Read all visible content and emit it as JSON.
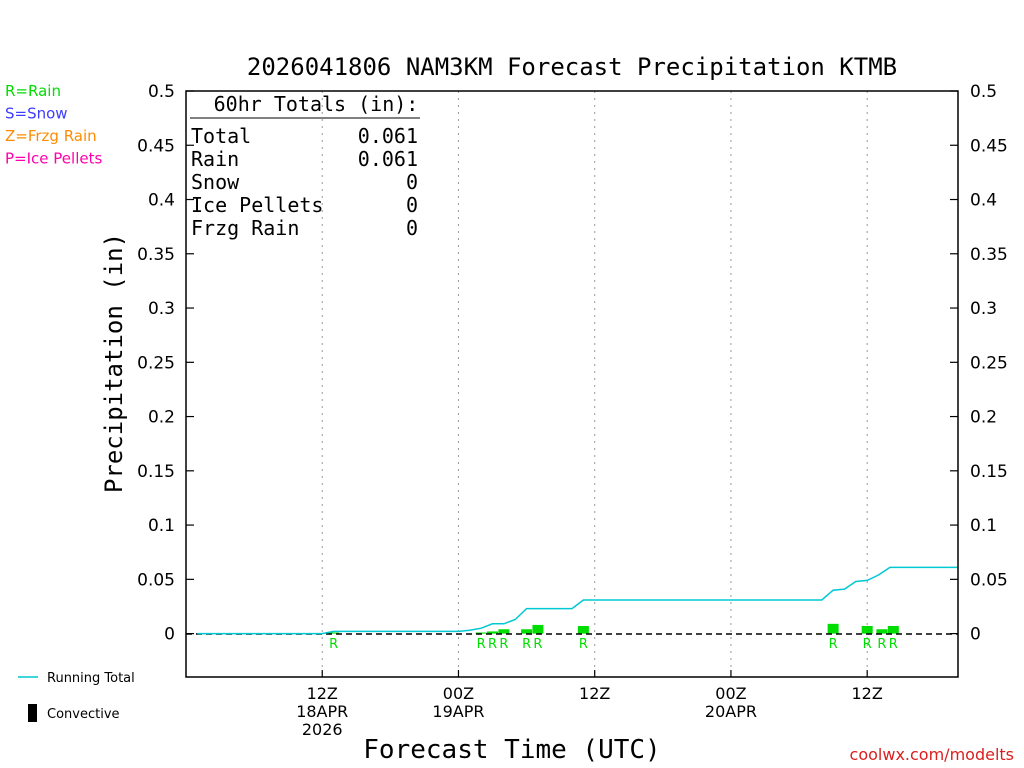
{
  "chart_data": {
    "type": "bar",
    "title": "2026041806 NAM3KM Forecast Precipitation KTMB",
    "xlabel": "Forecast Time (UTC)",
    "ylabel": "Precipitation (in)",
    "ylim": [
      -0.04,
      0.5
    ],
    "xlim_hours": [
      -6,
      62
    ],
    "y_ticks": [
      "0",
      "0.05",
      "0.1",
      "0.15",
      "0.2",
      "0.25",
      "0.3",
      "0.35",
      "0.4",
      "0.45",
      "0.5"
    ],
    "y_tick_values": [
      0,
      0.05,
      0.1,
      0.15,
      0.2,
      0.25,
      0.3,
      0.35,
      0.4,
      0.45,
      0.5
    ],
    "x_ticks": [
      {
        "hour": 6,
        "lines": [
          "12Z",
          "18APR",
          "2026"
        ]
      },
      {
        "hour": 18,
        "lines": [
          "00Z",
          "19APR"
        ]
      },
      {
        "hour": 30,
        "lines": [
          "12Z"
        ]
      },
      {
        "hour": 42,
        "lines": [
          "00Z",
          "20APR"
        ]
      },
      {
        "hour": 54,
        "lines": [
          "12Z"
        ]
      }
    ],
    "legend": [
      {
        "text": "R=Rain",
        "color": "#00dd00"
      },
      {
        "text": "S=Snow",
        "color": "#3c3cff"
      },
      {
        "text": "Z=Frzg Rain",
        "color": "#ff8c00"
      },
      {
        "text": "P=Ice Pellets",
        "color": "#ff00aa"
      }
    ],
    "totals": {
      "header": "60hr Totals (in):",
      "rows": [
        {
          "label": "Total",
          "value": "0.061"
        },
        {
          "label": "Rain",
          "value": "0.061"
        },
        {
          "label": "Snow",
          "value": "0"
        },
        {
          "label": "Ice Pellets",
          "value": "0"
        },
        {
          "label": "Frzg Rain",
          "value": "0"
        }
      ]
    },
    "bars": [
      {
        "hour": 7,
        "value": 0.001,
        "type": "R"
      },
      {
        "hour": 20,
        "value": 0.001,
        "type": "R"
      },
      {
        "hour": 21,
        "value": 0.002,
        "type": "R"
      },
      {
        "hour": 22,
        "value": 0.004,
        "type": "R"
      },
      {
        "hour": 24,
        "value": 0.004,
        "type": "R"
      },
      {
        "hour": 25,
        "value": 0.008,
        "type": "R"
      },
      {
        "hour": 29,
        "value": 0.007,
        "type": "R"
      },
      {
        "hour": 51,
        "value": 0.009,
        "type": "R"
      },
      {
        "hour": 54,
        "value": 0.007,
        "type": "R"
      },
      {
        "hour": 55.3,
        "value": 0.004,
        "type": "R"
      },
      {
        "hour": 56.3,
        "value": 0.007,
        "type": "R"
      }
    ],
    "running_total": {
      "hours": [
        -5,
        6,
        7,
        18,
        19,
        20,
        21,
        22,
        23,
        24,
        25,
        28,
        29,
        50,
        51,
        52,
        53,
        54,
        55,
        56,
        62
      ],
      "values": [
        0,
        0,
        0.002,
        0.002,
        0.003,
        0.005,
        0.009,
        0.009,
        0.013,
        0.023,
        0.023,
        0.023,
        0.031,
        0.031,
        0.04,
        0.041,
        0.048,
        0.049,
        0.054,
        0.061,
        0.061
      ]
    },
    "bottom_legend": {
      "line": "Running Total",
      "bar": "Convective"
    },
    "colors": {
      "rain": "#00dd00",
      "running_total": "#00c8d2",
      "axis": "#000000",
      "credit": "#dc1e1e"
    },
    "credit": "coolwx.com/modelts"
  }
}
